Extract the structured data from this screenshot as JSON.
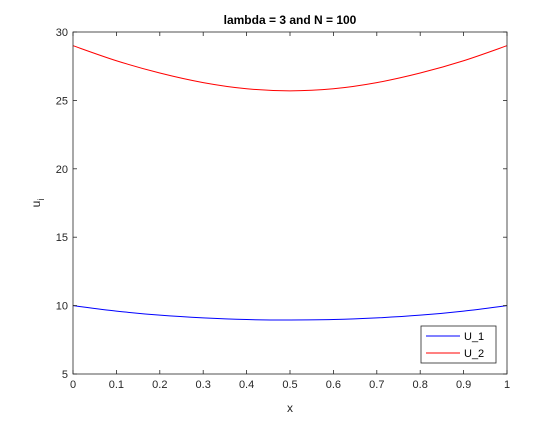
{
  "chart_data": {
    "type": "line",
    "title": "lambda = 3 and N = 100",
    "xlabel": "x",
    "ylabel": "u",
    "ylabel_subscript": "i",
    "xlim": [
      0,
      1
    ],
    "ylim": [
      5,
      30
    ],
    "xticks": [
      0,
      0.1,
      0.2,
      0.3,
      0.4,
      0.5,
      0.6,
      0.7,
      0.8,
      0.9,
      1
    ],
    "xtick_labels": [
      "0",
      "0.1",
      "0.2",
      "0.3",
      "0.4",
      "0.5",
      "0.6",
      "0.7",
      "0.8",
      "0.9",
      "1"
    ],
    "yticks": [
      5,
      10,
      15,
      20,
      25,
      30
    ],
    "ytick_labels": [
      "5",
      "10",
      "15",
      "20",
      "25",
      "30"
    ],
    "grid": false,
    "legend_position": "bottom-right",
    "x": [
      0,
      0.1,
      0.2,
      0.3,
      0.4,
      0.5,
      0.6,
      0.7,
      0.8,
      0.9,
      1
    ],
    "series": [
      {
        "name": "U_1",
        "color": "#0000ff",
        "values": [
          10.0,
          9.6,
          9.3,
          9.1,
          8.98,
          8.95,
          8.98,
          9.1,
          9.3,
          9.6,
          10.0
        ]
      },
      {
        "name": "U_2",
        "color": "#ff0000",
        "values": [
          29.0,
          27.9,
          27.0,
          26.3,
          25.85,
          25.7,
          25.85,
          26.3,
          27.0,
          27.9,
          29.0
        ]
      }
    ]
  }
}
